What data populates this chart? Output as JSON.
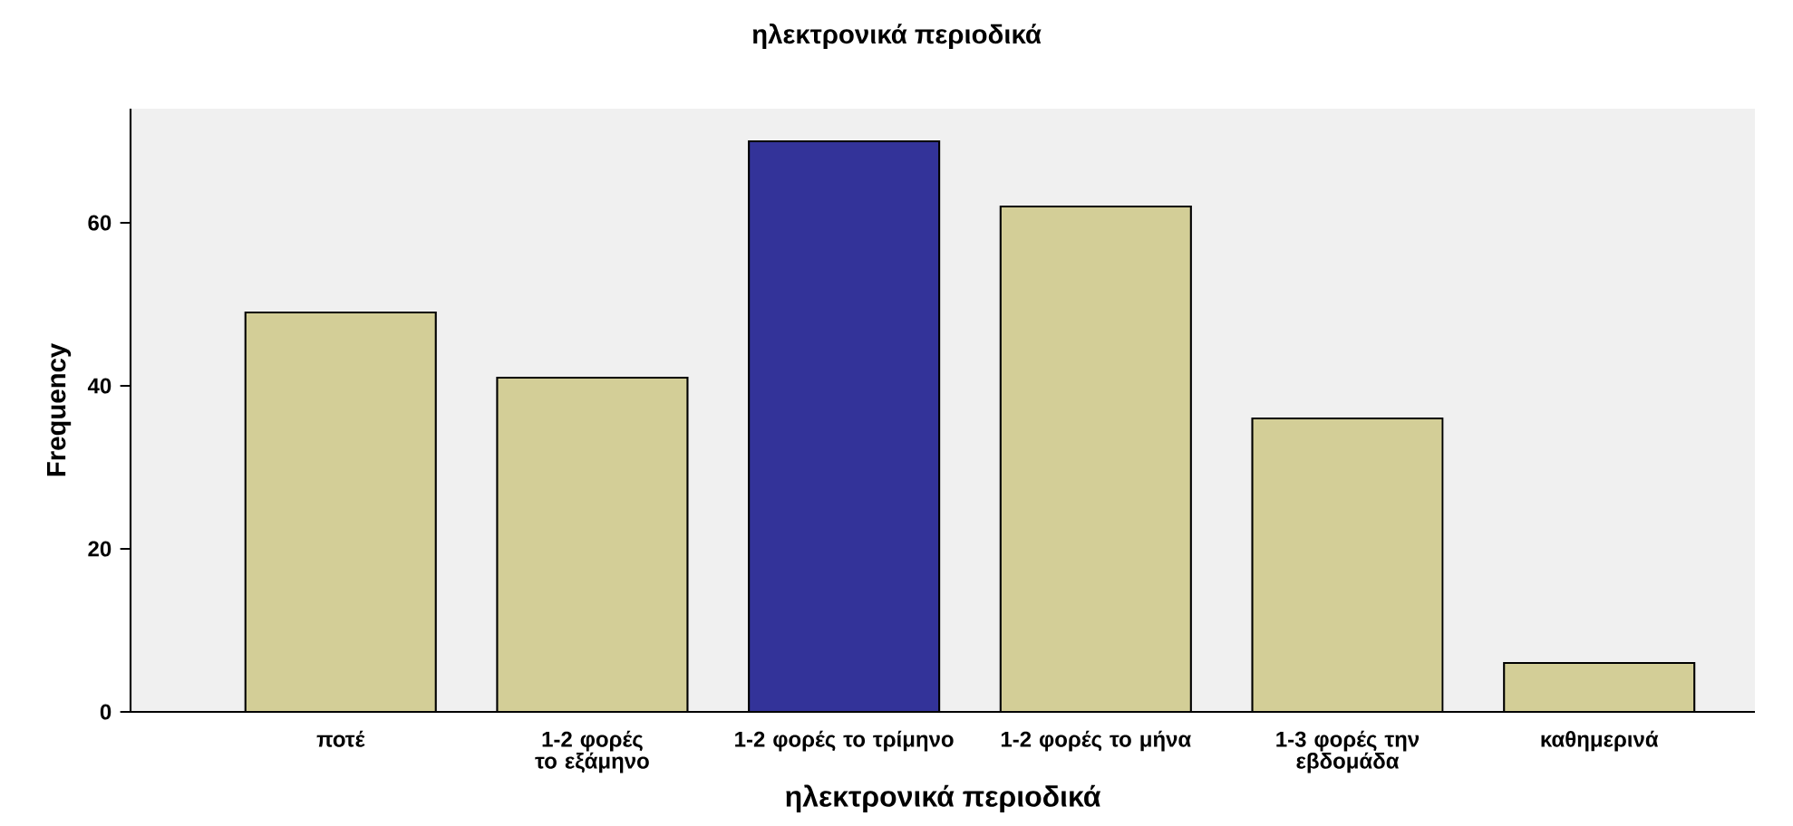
{
  "chart_data": {
    "type": "bar",
    "title": "ηλεκτρονικά περιοδικά",
    "xlabel": "ηλεκτρονικά περιοδικά",
    "ylabel": "Frequency",
    "categories": [
      "ποτέ",
      "1-2 φορές το εξάμηνο",
      "1-2 φορές το τρίμηνο",
      "1-2 φορές το μήνα",
      "1-3 φορές την εβδομάδα",
      "καθημερινά"
    ],
    "values": [
      49,
      41,
      70,
      62,
      36,
      6
    ],
    "colors": [
      "#d3ce97",
      "#d3ce97",
      "#333399",
      "#d3ce97",
      "#d3ce97",
      "#d3ce97"
    ],
    "ylim": [
      0,
      74
    ],
    "yticks": [
      0,
      20,
      40,
      60
    ]
  }
}
